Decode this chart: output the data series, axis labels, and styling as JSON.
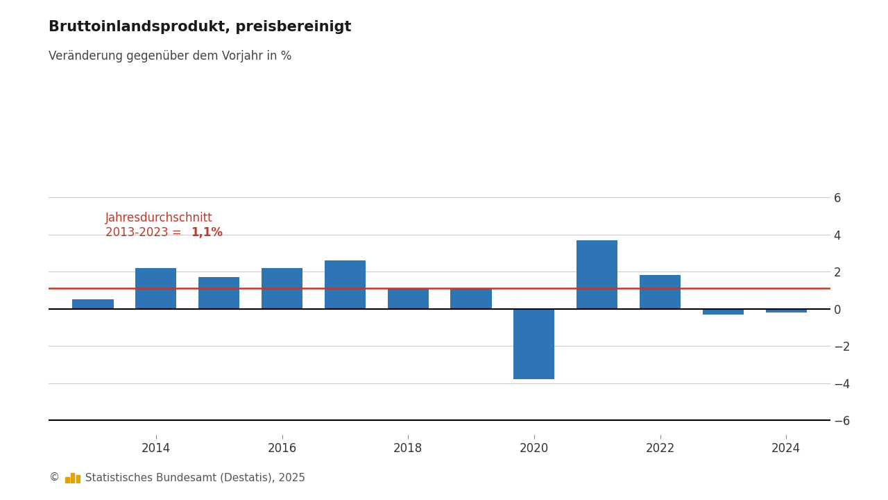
{
  "years": [
    2013,
    2014,
    2015,
    2016,
    2017,
    2018,
    2019,
    2020,
    2021,
    2022,
    2023,
    2024
  ],
  "values": [
    0.5,
    2.2,
    1.7,
    2.2,
    2.6,
    1.1,
    1.1,
    -3.8,
    3.7,
    1.8,
    -0.3,
    -0.2
  ],
  "bar_color": "#2E75B6",
  "average_line": 1.1,
  "average_line_color": "#C0392B",
  "title": "Bruttoinlandsprodukt, preisbereinigt",
  "subtitle": "Veränderung gegenüber dem Vorjahr in %",
  "annotation_line1": "Jahresdurchschnitt",
  "annotation_line2": "2013-2023 = ",
  "annotation_bold": "1,1%",
  "annotation_color": "#C0392B",
  "yticks": [
    -6,
    -4,
    -2,
    0,
    2,
    4,
    6
  ],
  "ylim": [
    -6.8,
    7.2
  ],
  "footer": "© ▮▮▮ Statistisches Bundesamt (Destatis), 2025",
  "background_color": "#FFFFFF",
  "title_fontsize": 15,
  "subtitle_fontsize": 12,
  "tick_fontsize": 12,
  "annotation_fontsize": 12,
  "footer_fontsize": 11,
  "bar_width": 0.65,
  "xtick_years": [
    2014,
    2016,
    2018,
    2020,
    2022,
    2024
  ],
  "grid_color": "#CCCCCC",
  "zero_line_color": "#000000",
  "bottom_line_color": "#000000"
}
